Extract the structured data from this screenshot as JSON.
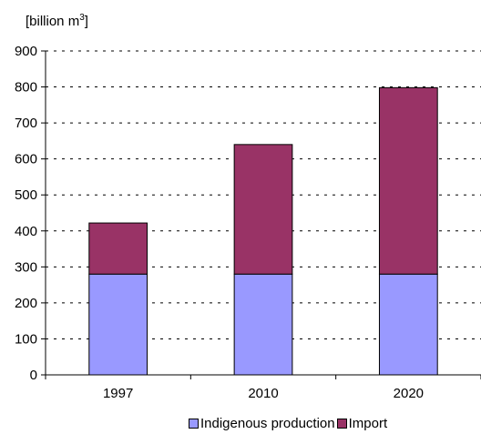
{
  "chart_data": {
    "type": "bar",
    "stacked": true,
    "ylabel_prefix": "[billion m",
    "ylabel_exp": "3",
    "ylabel_suffix": "]",
    "categories": [
      "1997",
      "2010",
      "2020"
    ],
    "series": [
      {
        "name": "Indigenous production",
        "values": [
          280,
          280,
          280
        ],
        "color": "#9999ff"
      },
      {
        "name": "Import",
        "values": [
          142,
          360,
          518
        ],
        "color": "#993366"
      }
    ],
    "ylim": [
      0,
      900
    ],
    "yticks": [
      0,
      100,
      200,
      300,
      400,
      500,
      600,
      700,
      800,
      900
    ],
    "grid": true,
    "legend_position": "bottom"
  }
}
